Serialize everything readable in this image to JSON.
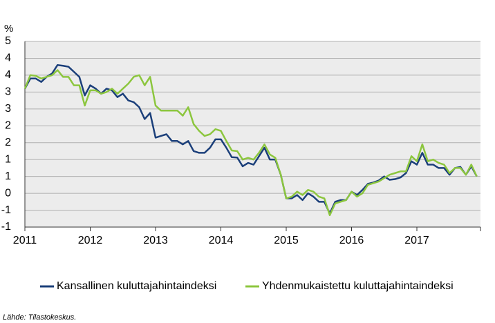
{
  "chart_data": {
    "type": "line",
    "y_unit": "%",
    "source": "Lähde: Tilastokeskus.",
    "categories": [
      "2011",
      null,
      null,
      null,
      null,
      null,
      null,
      null,
      null,
      null,
      null,
      null,
      "2012",
      null,
      null,
      null,
      null,
      null,
      null,
      null,
      null,
      null,
      null,
      null,
      "2013",
      null,
      null,
      null,
      null,
      null,
      null,
      null,
      null,
      null,
      null,
      null,
      "2014",
      null,
      null,
      null,
      null,
      null,
      null,
      null,
      null,
      null,
      null,
      null,
      "2015",
      null,
      null,
      null,
      null,
      null,
      null,
      null,
      null,
      null,
      null,
      null,
      "2016",
      null,
      null,
      null,
      null,
      null,
      null,
      null,
      null,
      null,
      null,
      null,
      "2017",
      null,
      null,
      null,
      null,
      null,
      null,
      null,
      null,
      null,
      null,
      null
    ],
    "series": [
      {
        "name": "Kansallinen kuluttajahintaindeksi",
        "color": "#1b3f7a",
        "values": [
          3.1,
          3.4,
          3.4,
          3.3,
          3.45,
          3.55,
          3.8,
          3.78,
          3.75,
          3.6,
          3.45,
          2.9,
          3.2,
          3.1,
          2.95,
          3.1,
          3.05,
          2.85,
          2.95,
          2.75,
          2.7,
          2.55,
          2.2,
          2.38,
          1.65,
          1.7,
          1.75,
          1.55,
          1.55,
          1.45,
          1.55,
          1.25,
          1.2,
          1.2,
          1.35,
          1.6,
          1.6,
          1.35,
          1.07,
          1.06,
          0.8,
          0.9,
          0.85,
          1.1,
          1.35,
          1.0,
          1.0,
          0.55,
          -0.15,
          -0.15,
          -0.05,
          -0.2,
          0.0,
          -0.1,
          -0.25,
          -0.25,
          -0.6,
          -0.25,
          -0.2,
          -0.2,
          0.05,
          -0.05,
          0.1,
          0.28,
          0.32,
          0.38,
          0.5,
          0.4,
          0.42,
          0.47,
          0.6,
          0.95,
          0.85,
          1.2,
          0.85,
          0.85,
          0.75,
          0.75,
          0.55,
          0.75,
          0.78,
          0.55,
          0.8,
          0.5
        ]
      },
      {
        "name": "Yhdenmukaistettu kuluttajahintaindeksi",
        "color": "#8cc63e",
        "values": [
          3.1,
          3.5,
          3.48,
          3.4,
          3.45,
          3.5,
          3.65,
          3.45,
          3.45,
          3.2,
          3.2,
          2.6,
          3.05,
          3.05,
          2.95,
          3.0,
          3.1,
          2.95,
          3.1,
          3.25,
          3.45,
          3.5,
          3.2,
          3.45,
          2.6,
          2.45,
          2.45,
          2.45,
          2.45,
          2.3,
          2.55,
          2.05,
          1.85,
          1.7,
          1.75,
          1.9,
          1.85,
          1.55,
          1.27,
          1.25,
          1.0,
          1.05,
          1.0,
          1.2,
          1.45,
          1.15,
          1.05,
          0.55,
          -0.15,
          -0.1,
          0.05,
          -0.05,
          0.1,
          0.05,
          -0.1,
          -0.15,
          -0.65,
          -0.3,
          -0.25,
          -0.2,
          0.05,
          -0.1,
          0.0,
          0.25,
          0.3,
          0.35,
          0.45,
          0.55,
          0.6,
          0.65,
          0.65,
          1.1,
          0.95,
          1.45,
          0.95,
          1.0,
          0.9,
          0.85,
          0.6,
          0.75,
          0.75,
          0.55,
          0.85,
          0.5
        ]
      }
    ],
    "ylim": [
      -1,
      4.5
    ],
    "yticks": [
      -1,
      {
        "value": -0.5,
        "label": "-1"
      },
      0,
      {
        "value": 0.5,
        "label": "1"
      },
      1,
      {
        "value": 1.5,
        "label": "2"
      },
      2,
      {
        "value": 2.5,
        "label": "3"
      },
      3,
      {
        "value": 3.5,
        "label": "4"
      },
      4,
      {
        "value": 4.5,
        "label": "5"
      }
    ],
    "grid": true
  }
}
